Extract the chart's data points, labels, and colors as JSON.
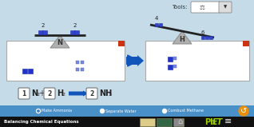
{
  "bg_color": "#c5dce8",
  "toolbar_color": "#4a90c8",
  "bottom_bar_color": "#111111",
  "box_color": "#ffffff",
  "box_border": "#aaaaaa",
  "arrow_color": "#1155bb",
  "balance_bar_color": "#222222",
  "triangle_color": "#b0b0b0",
  "triangle_edge": "#888888",
  "dot_blue_dark": "#2233bb",
  "dot_blue_light": "#5566cc",
  "orange_corner": "#cc3311",
  "radio_labels": [
    "Make Ammonia",
    "Separate Water",
    "Combust Methane"
  ],
  "bottom_text": "Balancing Chemical Equations",
  "phet_color": "#99cc00",
  "tools_label": "Tools:",
  "left_balance_nums": [
    "2",
    "2"
  ],
  "right_balance_nums": [
    "4",
    "6"
  ],
  "left_element": "N",
  "right_element": "H",
  "fig_width": 3.18,
  "fig_height": 1.59,
  "dpi": 100
}
